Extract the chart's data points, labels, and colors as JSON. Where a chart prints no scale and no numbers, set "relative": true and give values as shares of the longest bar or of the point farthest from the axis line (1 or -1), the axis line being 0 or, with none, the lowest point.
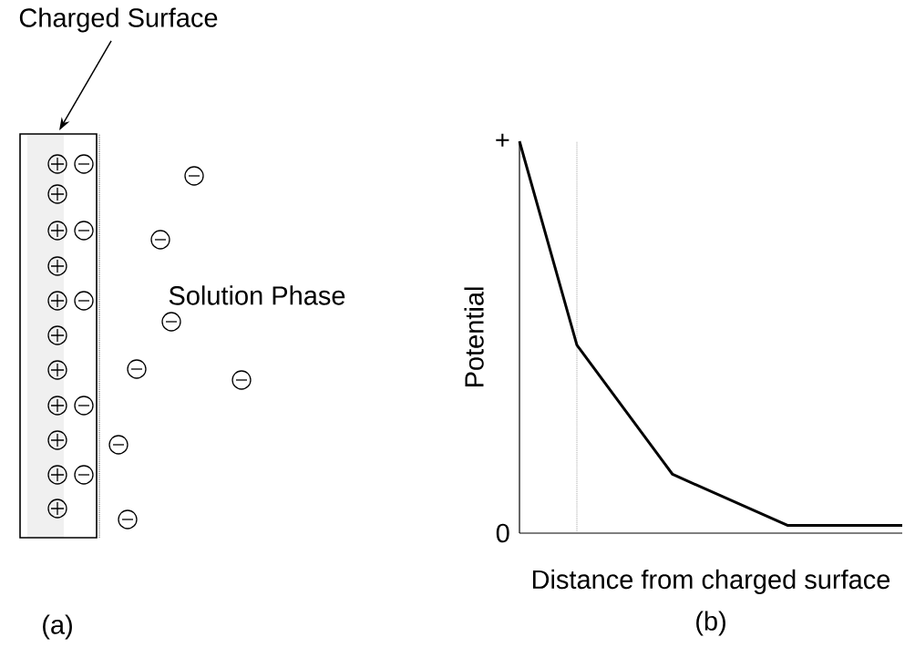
{
  "chart_data": [
    {
      "type": "other",
      "title": "(a)",
      "annotations": [
        "Charged Surface",
        "Solution Phase"
      ]
    },
    {
      "type": "line",
      "title": "(b)",
      "xlabel": "Distance from charged surface",
      "ylabel": "Potential",
      "relative": true,
      "categories": [
        null,
        null,
        null,
        null,
        null,
        null,
        null,
        null,
        null,
        null,
        null,
        null,
        null,
        null,
        null,
        null,
        null,
        null,
        null,
        null,
        null
      ],
      "series": [
        {
          "color": "#000000",
          "values": [
            1.0,
            null,
            null,
            0.48,
            null,
            null,
            null,
            null,
            0.15,
            null,
            null,
            null,
            null,
            null,
            0.02,
            null,
            null,
            null,
            null,
            null,
            0.02
          ]
        }
      ],
      "annotations": [
        "+",
        "0"
      ],
      "marker": "none",
      "line_style": "solid"
    }
  ]
}
